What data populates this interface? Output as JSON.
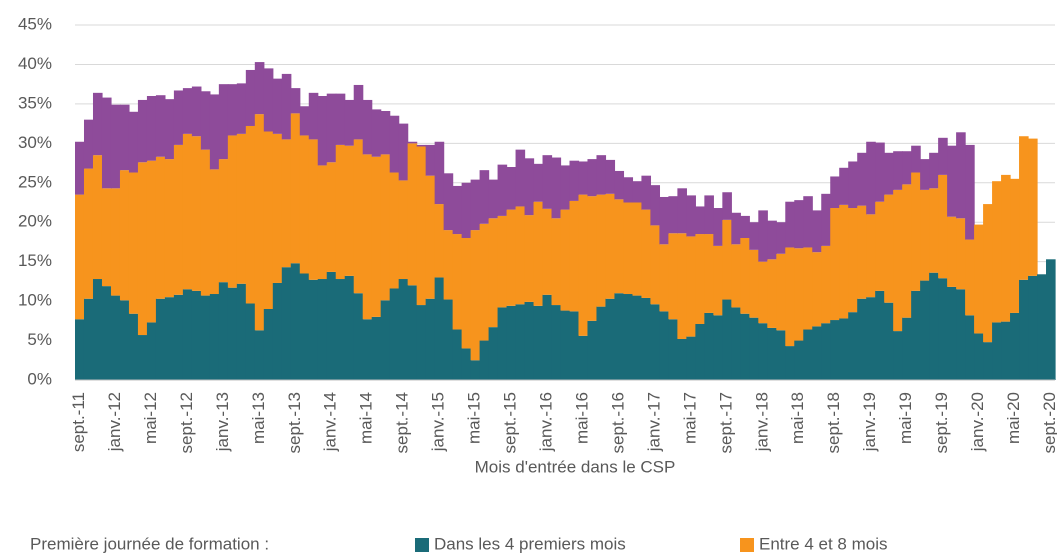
{
  "chart_data": {
    "type": "stacked_bar",
    "x_label": "Mois d'entrée dans le CSP",
    "legend_title": "Première journée de formation :",
    "categories": [
      "sept.-11",
      null,
      null,
      null,
      "janv.-12",
      null,
      null,
      null,
      "mai-12",
      null,
      null,
      null,
      "sept.-12",
      null,
      null,
      null,
      "janv.-13",
      null,
      null,
      null,
      "mai-13",
      null,
      null,
      null,
      "sept.-13",
      null,
      null,
      null,
      "janv.-14",
      null,
      null,
      null,
      "mai-14",
      null,
      null,
      null,
      "sept.-14",
      null,
      null,
      null,
      "janv.-15",
      null,
      null,
      null,
      "mai-15",
      null,
      null,
      null,
      "sept.-15",
      null,
      null,
      null,
      "janv.-16",
      null,
      null,
      null,
      "mai-16",
      null,
      null,
      null,
      "sept.-16",
      null,
      null,
      null,
      "janv.-17",
      null,
      null,
      null,
      "mai-17",
      null,
      null,
      null,
      "sept.-17",
      null,
      null,
      null,
      "janv.-18",
      null,
      null,
      null,
      "mai-18",
      null,
      null,
      null,
      "sept.-18",
      null,
      null,
      null,
      "janv.-19",
      null,
      null,
      null,
      "mai-19",
      null,
      null,
      null,
      "sept.-19",
      null,
      null,
      null,
      "janv.-20",
      null,
      null,
      null,
      "mai-20",
      null,
      null,
      null,
      "sept.-20"
    ],
    "series": [
      {
        "name": "Dans les 4 premiers mois",
        "color": "#1a6b78",
        "values": [
          7.7,
          10.3,
          12.8,
          11.9,
          10.7,
          10.1,
          8.4,
          5.7,
          7.3,
          10.3,
          10.5,
          10.8,
          11.5,
          11.3,
          10.7,
          10.9,
          12.4,
          11.7,
          12.2,
          9.7,
          6.3,
          9.0,
          12.3,
          14.3,
          14.8,
          13.5,
          12.7,
          12.8,
          13.7,
          12.8,
          13.2,
          11.0,
          7.7,
          8.0,
          10.1,
          11.6,
          12.8,
          12.0,
          9.5,
          10.3,
          13.0,
          10.2,
          6.4,
          4.0,
          2.5,
          5.0,
          6.7,
          9.2,
          9.4,
          9.6,
          9.9,
          9.4,
          10.8,
          9.5,
          8.8,
          8.7,
          5.6,
          7.5,
          9.3,
          10.3,
          11.0,
          10.9,
          10.7,
          10.4,
          9.6,
          8.7,
          7.7,
          5.2,
          5.5,
          7.1,
          8.5,
          8.2,
          10.2,
          9.2,
          8.4,
          7.9,
          7.2,
          6.6,
          6.3,
          4.3,
          5.0,
          6.4,
          6.8,
          7.2,
          7.6,
          7.8,
          8.6,
          10.3,
          10.5,
          11.3,
          9.8,
          6.2,
          7.9,
          11.3,
          12.6,
          13.6,
          12.9,
          11.8,
          11.5,
          8.2,
          5.9,
          4.8,
          7.3,
          7.4,
          8.5,
          12.7,
          13.2,
          13.4,
          15.3
        ]
      },
      {
        "name": "Entre 4 et 8 mois",
        "color": "#f7941d",
        "values": [
          15.8,
          16.5,
          15.7,
          12.4,
          13.6,
          16.5,
          17.9,
          21.9,
          20.5,
          18.0,
          17.5,
          19.0,
          19.7,
          19.6,
          18.5,
          15.8,
          15.6,
          19.3,
          19.0,
          22.5,
          27.4,
          22.5,
          18.9,
          16.2,
          19.0,
          17.5,
          17.8,
          14.4,
          13.9,
          17.0,
          16.5,
          19.5,
          20.9,
          20.3,
          18.5,
          14.7,
          12.5,
          18.0,
          20.1,
          15.6,
          9.3,
          8.8,
          12.1,
          14.0,
          16.5,
          14.8,
          13.8,
          11.6,
          12.2,
          12.4,
          11.0,
          13.2,
          10.9,
          11.0,
          12.8,
          14.0,
          17.9,
          15.8,
          14.2,
          13.3,
          11.9,
          11.6,
          11.8,
          11.2,
          10.0,
          8.5,
          10.9,
          13.4,
          12.7,
          11.4,
          10.0,
          8.8,
          10.1,
          8.0,
          9.6,
          8.6,
          7.8,
          8.7,
          9.7,
          12.5,
          11.7,
          10.4,
          9.4,
          9.8,
          14.2,
          14.4,
          13.2,
          11.8,
          10.5,
          11.3,
          13.7,
          17.9,
          16.9,
          15.0,
          11.5,
          10.7,
          13.1,
          8.9,
          9.0,
          9.6,
          13.8,
          17.5,
          17.9,
          18.6,
          17.0,
          18.2,
          17.4,
          null,
          null
        ]
      },
      {
        "color": "#8e4b9a",
        "values": [
          6.7,
          6.2,
          7.9,
          11.5,
          10.6,
          8.3,
          7.7,
          7.9,
          8.2,
          7.8,
          7.6,
          6.9,
          5.8,
          6.3,
          7.4,
          9.5,
          9.5,
          6.5,
          6.4,
          7.1,
          6.6,
          8.0,
          7.0,
          8.3,
          3.2,
          3.7,
          5.9,
          8.8,
          8.7,
          6.5,
          5.8,
          6.9,
          6.9,
          6.0,
          5.5,
          7.2,
          7.2,
          0.2,
          0.2,
          3.9,
          7.9,
          7.2,
          6.1,
          7.0,
          6.4,
          6.8,
          4.9,
          6.5,
          5.4,
          7.2,
          7.2,
          4.8,
          6.8,
          7.7,
          5.6,
          5.1,
          4.2,
          4.7,
          5.0,
          4.3,
          3.6,
          3.2,
          2.7,
          4.3,
          5.1,
          6.0,
          4.7,
          5.7,
          5.2,
          3.5,
          4.9,
          4.8,
          3.5,
          4.0,
          2.8,
          3.5,
          6.5,
          4.9,
          4.0,
          5.8,
          6.1,
          6.5,
          5.3,
          6.6,
          4.0,
          4.7,
          5.9,
          6.7,
          9.2,
          7.5,
          5.3,
          4.9,
          4.2,
          3.4,
          3.9,
          4.5,
          4.7,
          9.0,
          10.9,
          12.0,
          null,
          null,
          null,
          null,
          null,
          null,
          null,
          null,
          null
        ]
      }
    ],
    "ylim": [
      0,
      45
    ],
    "yticks": [
      {
        "value": 0,
        "label": "0%"
      },
      {
        "value": 5,
        "label": "5%"
      },
      {
        "value": 10,
        "label": "10%"
      },
      {
        "value": 15,
        "label": "15%"
      },
      {
        "value": 20,
        "label": "20%"
      },
      {
        "value": 25,
        "label": "25%"
      },
      {
        "value": 30,
        "label": "30%"
      },
      {
        "value": 35,
        "label": "35%"
      },
      {
        "value": 40,
        "label": "40%"
      },
      {
        "value": 45,
        "label": "45%"
      }
    ],
    "grid": true
  }
}
